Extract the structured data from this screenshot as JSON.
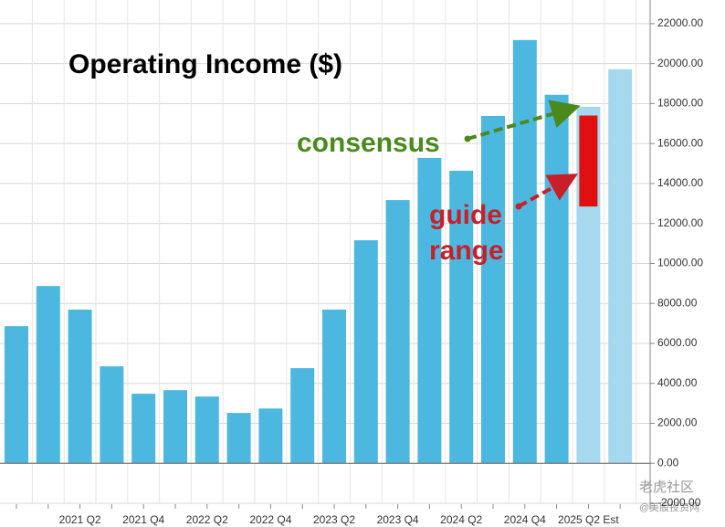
{
  "chart_data": {
    "type": "bar",
    "title": "Operating Income ($)",
    "categories": [
      null,
      null,
      "2021 Q2",
      null,
      "2021 Q4",
      null,
      "2022 Q2",
      null,
      "2022 Q4",
      null,
      "2023 Q2",
      null,
      "2023 Q4",
      null,
      "2024 Q2",
      null,
      "2024 Q4",
      null,
      "2025 Q2 Est",
      null
    ],
    "series": [
      {
        "color": "#4cb8e0",
        "values": [
          6860,
          8870,
          7690,
          4850,
          3480,
          3660,
          3340,
          2520,
          2740,
          4760,
          7690,
          11160,
          13170,
          15280,
          14640,
          17380,
          21180,
          18440,
          null,
          null
        ]
      },
      {
        "color": "#a6d8ee",
        "values": [
          null,
          null,
          null,
          null,
          null,
          null,
          null,
          null,
          null,
          null,
          null,
          null,
          null,
          null,
          null,
          null,
          null,
          null,
          17840,
          19720
        ]
      }
    ],
    "guide_range": {
      "low": 12850,
      "high": 17400,
      "color": "#e01010",
      "category": 18
    },
    "annotations": {
      "consensus": "consensus",
      "guide": [
        "guide",
        "range"
      ]
    },
    "watermark": [
      "老虎社区",
      "@美股投资网"
    ],
    "ylim": [
      -2000,
      23000
    ],
    "yticks": [
      {
        "value": -2000,
        "label": "-2000.00"
      },
      {
        "value": 0,
        "label": "0.00"
      },
      {
        "value": 2000,
        "label": "2000.00"
      },
      {
        "value": 4000,
        "label": "4000.00"
      },
      {
        "value": 6000,
        "label": "6000.00"
      },
      {
        "value": 8000,
        "label": "8000.00"
      },
      {
        "value": 10000,
        "label": "10000.00"
      },
      {
        "value": 12000,
        "label": "12000.00"
      },
      {
        "value": 14000,
        "label": "14000.00"
      },
      {
        "value": 16000,
        "label": "16000.00"
      },
      {
        "value": 18000,
        "label": "18000.00"
      },
      {
        "value": 20000,
        "label": "20000.00"
      },
      {
        "value": 22000,
        "label": "22000.00"
      }
    ],
    "grid": true
  }
}
